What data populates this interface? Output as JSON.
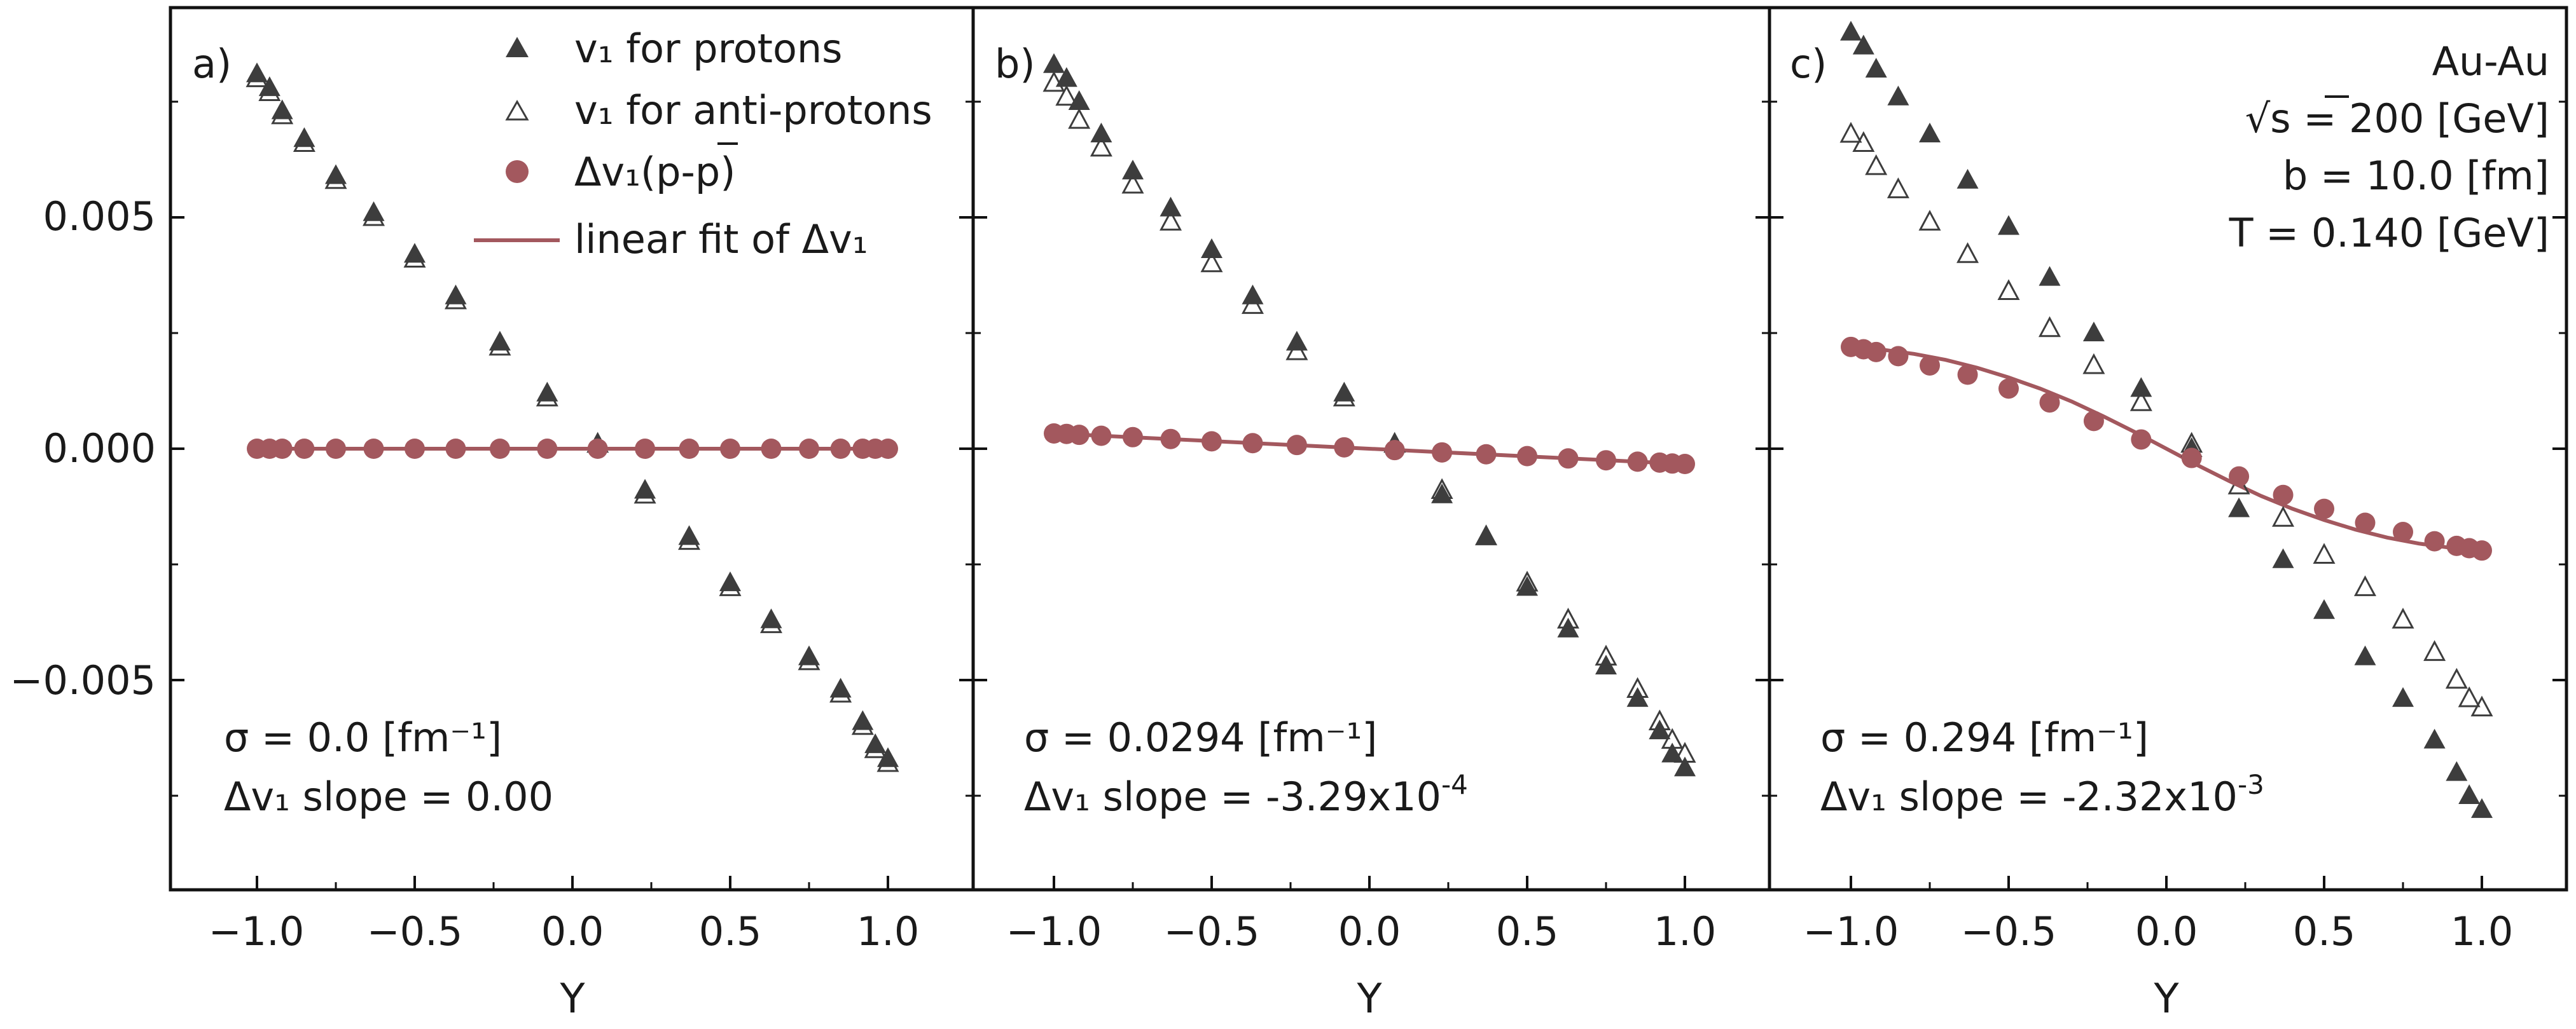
{
  "figure": {
    "x_label": "Y",
    "y_ticks": [
      "0.005",
      "0.000",
      "−0.005"
    ],
    "x_ticks": [
      "−1.0",
      "−0.5",
      "0.0",
      "0.5",
      "1.0"
    ]
  },
  "legend": {
    "protons": "v₁ for protons",
    "antiprotons": "v₁ for anti-protons",
    "dv1_prefix": "Δv₁(p-",
    "dv1_pbar": "p",
    "dv1_suffix": ")",
    "fit": "linear fit of Δv₁"
  },
  "colors": {
    "protons": "#3d3d3d",
    "dv1": "#a3585e",
    "fit": "#a3585e",
    "axes": "#111111"
  },
  "info_box": {
    "system": "Au-Au",
    "energy_prefix": "√s",
    "energy_value": " = 200 [GeV]",
    "impact": "b = 10.0 [fm]",
    "temperature": "T = 0.140 [GeV]"
  },
  "chart_data": [
    {
      "type": "scatter",
      "panel_label": "a)",
      "sigma_text": "σ = 0.0 [fm⁻¹]",
      "slope_text": "Δv₁ slope = 0.00",
      "xlabel": "Y",
      "xlim": [
        -1.25,
        1.25
      ],
      "ylim": [
        -0.0095,
        0.0095
      ],
      "series": [
        {
          "name": "v₁ for protons",
          "marker": "filled-triangle",
          "x": [
            -1.0,
            -0.96,
            -0.92,
            -0.85,
            -0.75,
            -0.63,
            -0.5,
            -0.37,
            -0.23,
            -0.08,
            0.08,
            0.23,
            0.37,
            0.5,
            0.63,
            0.75,
            0.85,
            0.92,
            0.96,
            1.0
          ],
          "y": [
            0.0081,
            0.0078,
            0.0073,
            0.0067,
            0.0059,
            0.0051,
            0.0042,
            0.0033,
            0.0023,
            0.0012,
            0.0001,
            -0.0009,
            -0.0019,
            -0.0029,
            -0.0037,
            -0.0045,
            -0.0052,
            -0.0059,
            -0.0064,
            -0.0067
          ]
        },
        {
          "name": "v₁ for anti-protons",
          "marker": "open-triangle",
          "x": [
            -1.0,
            -0.96,
            -0.92,
            -0.85,
            -0.75,
            -0.63,
            -0.5,
            -0.37,
            -0.23,
            -0.08,
            0.08,
            0.23,
            0.37,
            0.5,
            0.63,
            0.75,
            0.85,
            0.92,
            0.96,
            1.0
          ],
          "y": [
            0.008,
            0.0077,
            0.0072,
            0.0066,
            0.0058,
            0.005,
            0.0041,
            0.0032,
            0.0022,
            0.0011,
            0.0001,
            -0.001,
            -0.002,
            -0.003,
            -0.0038,
            -0.0046,
            -0.0053,
            -0.006,
            -0.0065,
            -0.0068
          ]
        },
        {
          "name": "Δv₁(p-p̅)",
          "marker": "circle",
          "x": [
            -1.0,
            -0.96,
            -0.92,
            -0.85,
            -0.75,
            -0.63,
            -0.5,
            -0.37,
            -0.23,
            -0.08,
            0.08,
            0.23,
            0.37,
            0.5,
            0.63,
            0.75,
            0.85,
            0.92,
            0.96,
            1.0
          ],
          "y": [
            0.0,
            0.0,
            0.0,
            0.0,
            0.0,
            0.0,
            0.0,
            0.0,
            0.0,
            0.0,
            0.0,
            0.0,
            0.0,
            0.0,
            0.0,
            0.0,
            0.0,
            0.0,
            0.0,
            0.0
          ]
        },
        {
          "name": "linear fit of Δv₁",
          "marker": "line",
          "x": [
            -1.0,
            1.0
          ],
          "y": [
            0.0,
            0.0
          ]
        }
      ]
    },
    {
      "type": "scatter",
      "panel_label": "b)",
      "sigma_text": "σ = 0.0294 [fm⁻¹]",
      "slope_text": "Δv₁ slope = -3.29x10",
      "slope_exp": "-4",
      "xlabel": "Y",
      "xlim": [
        -1.25,
        1.25
      ],
      "ylim": [
        -0.0095,
        0.0095
      ],
      "series": [
        {
          "name": "v₁ for protons",
          "marker": "filled-triangle",
          "x": [
            -1.0,
            -0.96,
            -0.92,
            -0.85,
            -0.75,
            -0.63,
            -0.5,
            -0.37,
            -0.23,
            -0.08,
            0.08,
            0.23,
            0.37,
            0.5,
            0.63,
            0.75,
            0.85,
            0.92,
            0.96,
            1.0
          ],
          "y": [
            0.0083,
            0.008,
            0.0075,
            0.0068,
            0.006,
            0.0052,
            0.0043,
            0.0033,
            0.0023,
            0.0012,
            0.0001,
            -0.001,
            -0.0019,
            -0.003,
            -0.0039,
            -0.0047,
            -0.0054,
            -0.0061,
            -0.0066,
            -0.0069
          ]
        },
        {
          "name": "v₁ for anti-protons",
          "marker": "open-triangle",
          "x": [
            -1.0,
            -0.96,
            -0.92,
            -0.85,
            -0.75,
            -0.63,
            -0.5,
            -0.37,
            -0.23,
            -0.08,
            0.08,
            0.23,
            0.37,
            0.5,
            0.63,
            0.75,
            0.85,
            0.92,
            0.96,
            1.0
          ],
          "y": [
            0.0079,
            0.0076,
            0.0071,
            0.0065,
            0.0057,
            0.0049,
            0.004,
            0.0031,
            0.0021,
            0.0011,
            0.0001,
            -0.0009,
            -0.0019,
            -0.0029,
            -0.0037,
            -0.0045,
            -0.0052,
            -0.0059,
            -0.0063,
            -0.0066
          ]
        },
        {
          "name": "Δv₁(p-p̅)",
          "marker": "circle",
          "x": [
            -1.0,
            -0.96,
            -0.92,
            -0.85,
            -0.75,
            -0.63,
            -0.5,
            -0.37,
            -0.23,
            -0.08,
            0.08,
            0.23,
            0.37,
            0.5,
            0.63,
            0.75,
            0.85,
            0.92,
            0.96,
            1.0
          ],
          "y": [
            0.00033,
            0.00032,
            0.0003,
            0.00028,
            0.00025,
            0.00021,
            0.00016,
            0.00012,
            8e-05,
            3e-05,
            -3e-05,
            -8e-05,
            -0.00012,
            -0.00016,
            -0.00021,
            -0.00025,
            -0.00028,
            -0.0003,
            -0.00032,
            -0.00033
          ]
        },
        {
          "name": "linear fit of Δv₁",
          "marker": "line",
          "x": [
            -1.0,
            1.0
          ],
          "y": [
            0.00033,
            -0.00033
          ]
        }
      ]
    },
    {
      "type": "scatter",
      "panel_label": "c)",
      "sigma_text": "σ = 0.294 [fm⁻¹]",
      "slope_text": "Δv₁ slope = -2.32x10",
      "slope_exp": "-3",
      "xlabel": "Y",
      "xlim": [
        -1.25,
        1.25
      ],
      "ylim": [
        -0.0095,
        0.0095
      ],
      "series": [
        {
          "name": "v₁ for protons",
          "marker": "filled-triangle",
          "x": [
            -1.0,
            -0.96,
            -0.92,
            -0.85,
            -0.75,
            -0.63,
            -0.5,
            -0.37,
            -0.23,
            -0.08,
            0.08,
            0.23,
            0.37,
            0.5,
            0.63,
            0.75,
            0.85,
            0.92,
            0.96,
            1.0
          ],
          "y": [
            0.009,
            0.0087,
            0.0082,
            0.0076,
            0.0068,
            0.0058,
            0.0048,
            0.0037,
            0.0025,
            0.0013,
            0.0,
            -0.0013,
            -0.0024,
            -0.0035,
            -0.0045,
            -0.0054,
            -0.0063,
            -0.007,
            -0.0075,
            -0.0078
          ]
        },
        {
          "name": "v₁ for anti-protons",
          "marker": "open-triangle",
          "x": [
            -1.0,
            -0.96,
            -0.92,
            -0.85,
            -0.75,
            -0.63,
            -0.5,
            -0.37,
            -0.23,
            -0.08,
            0.08,
            0.23,
            0.37,
            0.5,
            0.63,
            0.75,
            0.85,
            0.92,
            0.96,
            1.0
          ],
          "y": [
            0.0068,
            0.0066,
            0.0061,
            0.0056,
            0.0049,
            0.0042,
            0.0034,
            0.0026,
            0.0018,
            0.001,
            0.0001,
            -0.0008,
            -0.0015,
            -0.0023,
            -0.003,
            -0.0037,
            -0.0044,
            -0.005,
            -0.0054,
            -0.0056
          ]
        },
        {
          "name": "Δv₁(p-p̅)",
          "marker": "circle",
          "x": [
            -1.0,
            -0.96,
            -0.92,
            -0.85,
            -0.75,
            -0.63,
            -0.5,
            -0.37,
            -0.23,
            -0.08,
            0.08,
            0.23,
            0.37,
            0.5,
            0.63,
            0.75,
            0.85,
            0.92,
            0.96,
            1.0
          ],
          "y": [
            0.0022,
            0.00215,
            0.00209,
            0.002,
            0.0018,
            0.0016,
            0.0013,
            0.001,
            0.0006,
            0.0002,
            -0.0002,
            -0.0006,
            -0.001,
            -0.0013,
            -0.0016,
            -0.0018,
            -0.002,
            -0.0021,
            -0.00215,
            -0.0022
          ]
        },
        {
          "name": "linear fit of Δv₁",
          "marker": "line",
          "x": [
            -1.0,
            -0.9,
            -0.8,
            -0.7,
            -0.6,
            -0.5,
            -0.4,
            -0.3,
            -0.2,
            -0.1,
            0.0,
            0.1,
            0.2,
            0.3,
            0.4,
            0.5,
            0.6,
            0.7,
            0.8,
            0.9,
            1.0
          ],
          "y": [
            0.0022,
            0.00214,
            0.00205,
            0.00192,
            0.00175,
            0.00154,
            0.0013,
            0.00102,
            0.0007,
            0.00036,
            0.0,
            -0.00036,
            -0.0007,
            -0.00102,
            -0.0013,
            -0.00154,
            -0.00175,
            -0.00192,
            -0.00205,
            -0.00214,
            -0.0022
          ]
        }
      ]
    }
  ]
}
